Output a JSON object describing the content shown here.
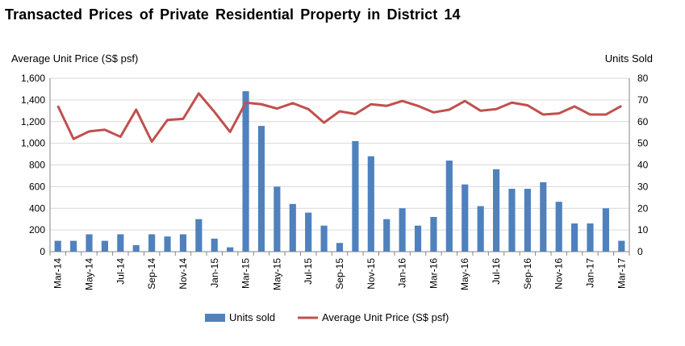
{
  "chart_data": {
    "type": "bar+line",
    "title": "Transacted Prices of Private Residential Property in District 14",
    "y_left_label": "Average Unit Price (S$ psf)",
    "y_right_label": "Units Sold",
    "y_left_lim": [
      0,
      1600
    ],
    "y_left_ticks": [
      "0",
      "200",
      "400",
      "600",
      "800",
      "1,000",
      "1,200",
      "1,400",
      "1,600"
    ],
    "y_right_lim": [
      0,
      80
    ],
    "y_right_ticks": [
      "0",
      "10",
      "20",
      "30",
      "40",
      "50",
      "60",
      "70",
      "80"
    ],
    "categories": [
      "Mar-14",
      "Apr-14",
      "May-14",
      "Jun-14",
      "Jul-14",
      "Aug-14",
      "Sep-14",
      "Oct-14",
      "Nov-14",
      "Dec-14",
      "Jan-15",
      "Feb-15",
      "Mar-15",
      "Apr-15",
      "May-15",
      "Jun-15",
      "Jul-15",
      "Aug-15",
      "Sep-15",
      "Oct-15",
      "Nov-15",
      "Dec-15",
      "Jan-16",
      "Feb-16",
      "Mar-16",
      "Apr-16",
      "May-16",
      "Jun-16",
      "Jul-16",
      "Aug-16",
      "Sep-16",
      "Oct-16",
      "Nov-16",
      "Dec-16",
      "Jan-17",
      "Feb-17",
      "Mar-17"
    ],
    "x_tick_labels": [
      "Mar-14",
      "May-14",
      "Jul-14",
      "Sep-14",
      "Nov-14",
      "Jan-15",
      "Mar-15",
      "May-15",
      "Jul-15",
      "Sep-15",
      "Nov-15",
      "Jan-16",
      "Mar-16",
      "May-16",
      "Jul-16",
      "Sep-16",
      "Nov-16",
      "Jan-17",
      "Mar-17"
    ],
    "grid": true,
    "legend_position": "bottom",
    "series": [
      {
        "name": "Units sold",
        "type": "bar",
        "axis": "right",
        "color": "#4f81bd",
        "values": [
          5,
          5,
          8,
          5,
          8,
          3,
          8,
          7,
          8,
          15,
          6,
          2,
          74,
          58,
          30,
          22,
          18,
          12,
          4,
          51,
          44,
          15,
          20,
          12,
          16,
          42,
          31,
          21,
          38,
          29,
          29,
          32,
          23,
          13,
          13,
          20,
          5
        ]
      },
      {
        "name": "Average Unit Price (S$ psf)",
        "type": "line",
        "axis": "left",
        "color": "#c0504d",
        "values": [
          1345,
          1040,
          1110,
          1125,
          1060,
          1310,
          1015,
          1215,
          1225,
          1460,
          1290,
          1105,
          1375,
          1360,
          1320,
          1370,
          1315,
          1190,
          1295,
          1270,
          1360,
          1345,
          1390,
          1345,
          1285,
          1310,
          1390,
          1300,
          1315,
          1375,
          1350,
          1265,
          1275,
          1340,
          1265,
          1265,
          1345
        ]
      }
    ]
  }
}
